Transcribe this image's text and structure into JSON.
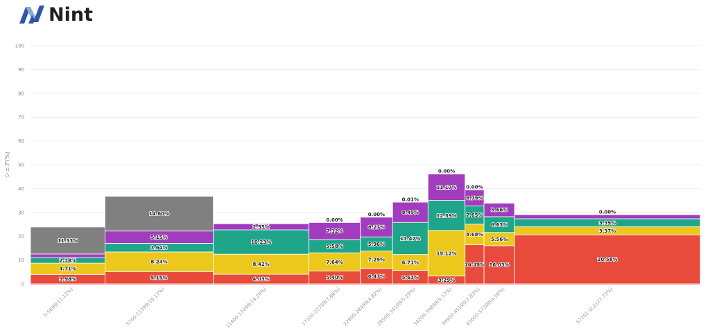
{
  "brand": {
    "name": "Nint",
    "logo_icon": "nint-logo-icon"
  },
  "chart_data": {
    "type": "bar",
    "subtype": "marimekko-stacked",
    "title": "",
    "xlabel": "",
    "ylabel": "シェア(%)",
    "ylim": [
      0,
      100
    ],
    "yticks": [
      0,
      10,
      20,
      30,
      40,
      50,
      60,
      70,
      80,
      90,
      100
    ],
    "grid": true,
    "legend": "none",
    "categories": [
      "0-5699(11.12%)",
      "5700-11399(16.17%)",
      "11400-17099(14.29%)",
      "17100-22799(7.66%)",
      "22800-28499(4.82%)",
      "28500-34199(5.29%)",
      "34200-39899(5.53%)",
      "39900-45599(2.83%)",
      "45600-57200(4.56%)",
      "57201-以上(27.73%)"
    ],
    "column_widths_pct": [
      11.12,
      16.17,
      14.29,
      7.66,
      4.82,
      5.29,
      5.53,
      2.83,
      4.56,
      27.73
    ],
    "series": [
      {
        "name": "red",
        "color": "#e84b3c",
        "values": [
          3.98,
          5.15,
          4.03,
          5.4,
          6.47,
          5.63,
          3.29,
          16.39,
          16.03,
          20.58
        ]
      },
      {
        "name": "yellow",
        "color": "#ecc81c",
        "values": [
          4.71,
          8.24,
          8.42,
          7.64,
          7.29,
          6.71,
          19.12,
          8.68,
          5.56,
          3.37
        ]
      },
      {
        "name": "teal",
        "color": "#1fa68a",
        "values": [
          2.34,
          3.64,
          10.23,
          5.58,
          5.96,
          13.47,
          12.59,
          7.65,
          6.63,
          3.39
        ]
      },
      {
        "name": "purple",
        "color": "#a23cbf",
        "values": [
          1.5,
          5.15,
          2.55,
          7.12,
          8.27,
          8.49,
          11.17,
          6.79,
          5.66,
          1.7
        ]
      },
      {
        "name": "gray-purple-top",
        "color": "#a23cbf",
        "values": [
          0,
          0,
          0,
          0.0,
          0.0,
          0.01,
          0.0,
          0.0,
          0,
          0.0
        ]
      },
      {
        "name": "gray",
        "color": "#808080",
        "values": [
          11.33,
          14.6,
          0,
          0,
          0,
          0,
          0,
          0,
          0,
          0
        ]
      }
    ],
    "segment_labels": [
      [
        "3.98%",
        "4.71%",
        "2.34%",
        "",
        "",
        "11.33%"
      ],
      [
        "5.15%",
        "8.24%",
        "3.64%",
        "5.15%",
        "",
        "14.60%"
      ],
      [
        "4.03%",
        "8.42%",
        "10.23%",
        "2.55%",
        "",
        ""
      ],
      [
        "5.40%",
        "7.64%",
        "5.58%",
        "7.12%",
        "0.00%",
        ""
      ],
      [
        "6.47%",
        "7.29%",
        "5.96%",
        "8.27%",
        "0.00%",
        ""
      ],
      [
        "5.63%",
        "6.71%",
        "13.47%",
        "8.49%",
        "0.01%",
        ""
      ],
      [
        "3.29%",
        "19.12%",
        "12.59%",
        "11.17%",
        "0.00%",
        ""
      ],
      [
        "16.39%",
        "8.68%",
        "7.65%",
        "6.79%",
        "0.00%",
        ""
      ],
      [
        "16.03%",
        "5.56%",
        "6.63%",
        "5.66%",
        "",
        ""
      ],
      [
        "20.58%",
        "3.37%",
        "3.39%",
        "",
        "0.00%",
        ""
      ]
    ]
  }
}
